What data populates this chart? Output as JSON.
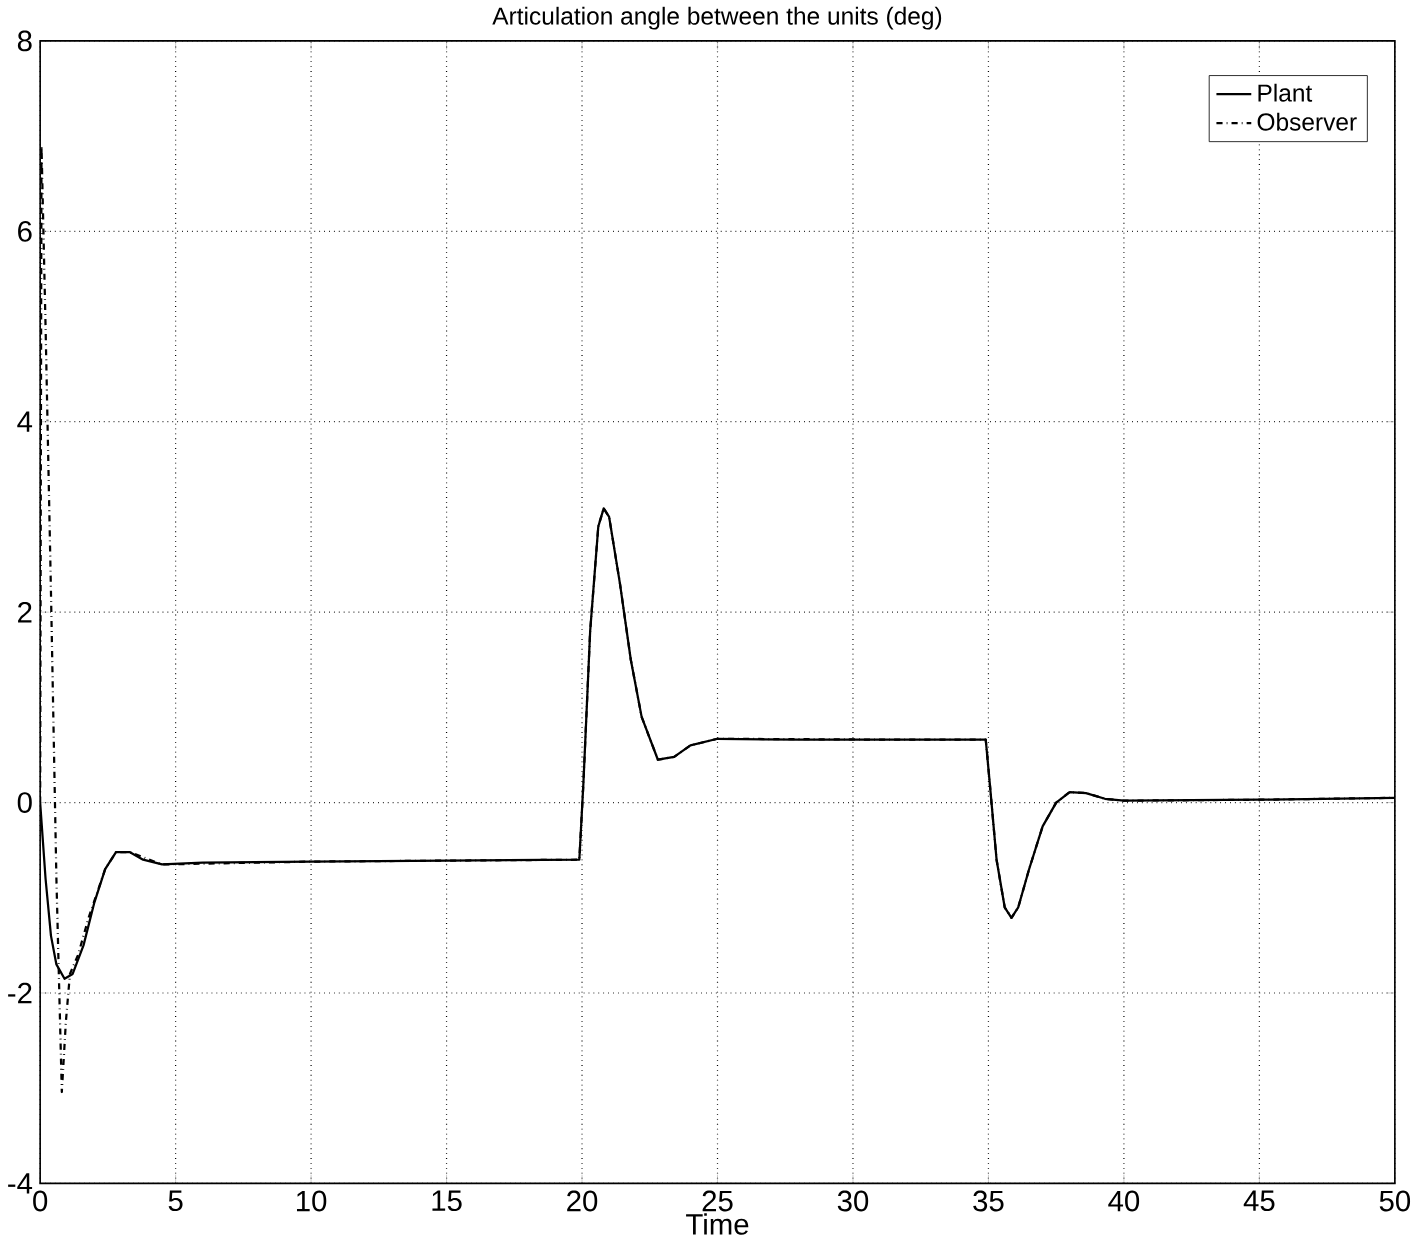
{
  "chart_data": {
    "type": "line",
    "title": "Articulation angle between the units (deg)",
    "xlabel": "Time",
    "xlim": [
      0,
      50
    ],
    "ylim": [
      -4,
      8
    ],
    "xticks": [
      0,
      5,
      10,
      15,
      20,
      25,
      30,
      35,
      40,
      45,
      50
    ],
    "yticks": [
      -4,
      -2,
      0,
      2,
      4,
      6,
      8
    ],
    "grid": true,
    "legend": "top right",
    "series": [
      {
        "name": "Plant",
        "color": "#000000",
        "line_style": "solid",
        "x": [
          0,
          0.2,
          0.4,
          0.6,
          0.9,
          1.2,
          1.6,
          2.0,
          2.4,
          2.8,
          3.3,
          3.8,
          4.5,
          6,
          10,
          15,
          19.9,
          20.05,
          20.3,
          20.6,
          20.8,
          21.0,
          21.4,
          21.8,
          22.2,
          22.8,
          23.4,
          24.0,
          25,
          28,
          32,
          34.9,
          35.05,
          35.3,
          35.6,
          35.85,
          36.1,
          36.5,
          37.0,
          37.5,
          38.0,
          38.6,
          39.3,
          40,
          45,
          50
        ],
        "values": [
          0,
          -0.8,
          -1.4,
          -1.7,
          -1.85,
          -1.8,
          -1.5,
          -1.05,
          -0.7,
          -0.52,
          -0.52,
          -0.6,
          -0.65,
          -0.63,
          -0.62,
          -0.61,
          -0.6,
          0.2,
          1.8,
          2.9,
          3.09,
          3.0,
          2.3,
          1.5,
          0.9,
          0.45,
          0.48,
          0.6,
          0.67,
          0.66,
          0.66,
          0.66,
          0.2,
          -0.6,
          -1.1,
          -1.21,
          -1.1,
          -0.7,
          -0.25,
          0.0,
          0.11,
          0.1,
          0.04,
          0.02,
          0.03,
          0.05
        ]
      },
      {
        "name": "Observer",
        "color": "#000000",
        "line_style": "dashdot",
        "x": [
          0,
          0.05,
          0.2,
          0.4,
          0.6,
          0.8,
          0.95,
          1.1,
          1.4,
          1.8,
          2.4,
          2.8,
          3.3,
          4.5,
          10,
          19.9,
          20.05,
          20.3,
          20.6,
          20.8,
          21.0,
          21.4,
          21.8,
          22.2,
          22.8,
          23.4,
          24.0,
          25,
          32,
          34.9,
          35.05,
          35.3,
          35.6,
          35.85,
          36.1,
          36.5,
          37.0,
          37.5,
          38.0,
          38.6,
          39.3,
          40,
          45,
          50
        ],
        "values": [
          0,
          6.9,
          5.0,
          2.2,
          -0.8,
          -3.04,
          -2.3,
          -1.8,
          -1.6,
          -1.2,
          -0.7,
          -0.52,
          -0.52,
          -0.65,
          -0.62,
          -0.6,
          0.2,
          1.8,
          2.9,
          3.09,
          3.0,
          2.3,
          1.5,
          0.9,
          0.45,
          0.48,
          0.6,
          0.67,
          0.66,
          0.66,
          0.2,
          -0.6,
          -1.1,
          -1.21,
          -1.1,
          -0.7,
          -0.25,
          0.0,
          0.11,
          0.1,
          0.04,
          0.02,
          0.03,
          0.05
        ]
      }
    ]
  }
}
